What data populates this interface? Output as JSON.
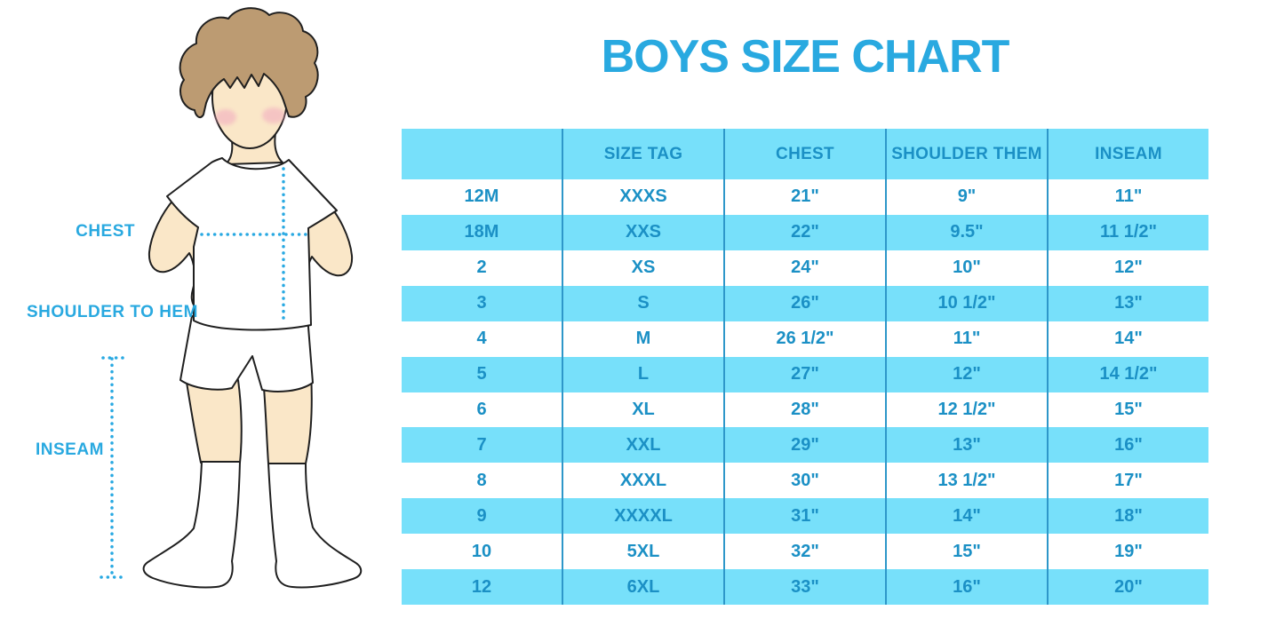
{
  "title": "BOYS SIZE CHART",
  "figure_labels": {
    "chest": "CHEST",
    "shoulder_to_hem": "SHOULDER TO HEM",
    "inseam": "INSEAM"
  },
  "colors": {
    "accent": "#29A9E0",
    "table_text": "#1B90C5",
    "row_cyan": "#77E0FA",
    "divider": "#2E97C9",
    "dotted_line": "#29A9E2",
    "skin": "#FAE7C8",
    "hair": "#BC9B72",
    "blush": "#F2AEC0",
    "outline": "#1F1F1F"
  },
  "chart_data": {
    "type": "table",
    "title": "BOYS SIZE CHART",
    "columns": [
      "",
      "SIZE TAG",
      "CHEST",
      "SHOULDER THEM",
      "INSEAM"
    ],
    "rows": [
      [
        "12M",
        "XXXS",
        "21\"",
        "9\"",
        "11\""
      ],
      [
        "18M",
        "XXS",
        "22\"",
        "9.5\"",
        "11 1/2\""
      ],
      [
        "2",
        "XS",
        "24\"",
        "10\"",
        "12\""
      ],
      [
        "3",
        "S",
        "26\"",
        "10 1/2\"",
        "13\""
      ],
      [
        "4",
        "M",
        "26 1/2\"",
        "11\"",
        "14\""
      ],
      [
        "5",
        "L",
        "27\"",
        "12\"",
        "14 1/2\""
      ],
      [
        "6",
        "XL",
        "28\"",
        "12 1/2\"",
        "15\""
      ],
      [
        "7",
        "XXL",
        "29\"",
        "13\"",
        "16\""
      ],
      [
        "8",
        "XXXL",
        "30\"",
        "13 1/2\"",
        "17\""
      ],
      [
        "9",
        "XXXXL",
        "31\"",
        "14\"",
        "18\""
      ],
      [
        "10",
        "5XL",
        "32\"",
        "15\"",
        "19\""
      ],
      [
        "12",
        "6XL",
        "33\"",
        "16\"",
        "20\""
      ]
    ]
  }
}
